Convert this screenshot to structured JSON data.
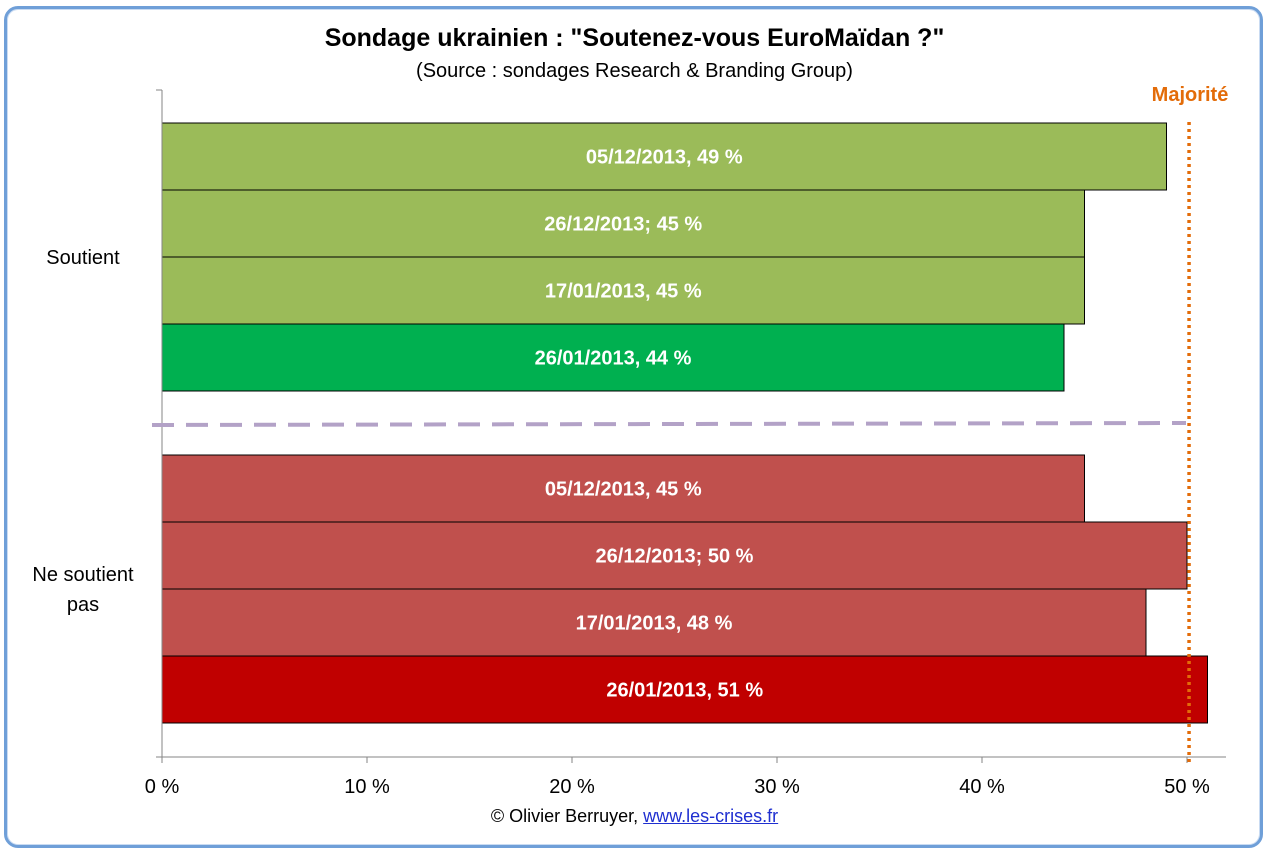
{
  "title": "Sondage ukrainien : \"Soutenez-vous EuroMaïdan ?\"",
  "subtitle": "(Source : sondages Research & Branding Group)",
  "credit": {
    "author": "© Olivier Berruyer,",
    "link": "www.les-crises.fr"
  },
  "chart_data": {
    "type": "bar",
    "orientation": "horizontal",
    "xlim": [
      0,
      52
    ],
    "x_ticks": [
      {
        "value": 0,
        "label": "0 %"
      },
      {
        "value": 10,
        "label": "10 %"
      },
      {
        "value": 20,
        "label": "20 %"
      },
      {
        "value": 30,
        "label": "30 %"
      },
      {
        "value": 40,
        "label": "40 %"
      },
      {
        "value": 50,
        "label": "50 %"
      }
    ],
    "grid": false,
    "groups": [
      {
        "name": "Soutient",
        "bars": [
          {
            "label": "05/12/2013, 49 %",
            "value": 49,
            "color": "#9bbb59"
          },
          {
            "label": "26/12/2013; 45 %",
            "value": 45,
            "color": "#9bbb59"
          },
          {
            "label": "17/01/2013, 45 %",
            "value": 45,
            "color": "#9bbb59"
          },
          {
            "label": "26/01/2013, 44 %",
            "value": 44,
            "color": "#00b050"
          }
        ]
      },
      {
        "name": "Ne soutient pas",
        "bars": [
          {
            "label": "05/12/2013, 45 %",
            "value": 45,
            "color": "#c0504d"
          },
          {
            "label": "26/12/2013; 50 %",
            "value": 50,
            "color": "#c0504d"
          },
          {
            "label": "17/01/2013, 48 %",
            "value": 48,
            "color": "#c0504d"
          },
          {
            "label": "26/01/2013, 51 %",
            "value": 51,
            "color": "#c00000"
          }
        ]
      }
    ],
    "reference_line": {
      "label": "Majorité",
      "value": 50.1,
      "color": "#e36c09"
    },
    "separator_color": "#b3a2c7"
  }
}
